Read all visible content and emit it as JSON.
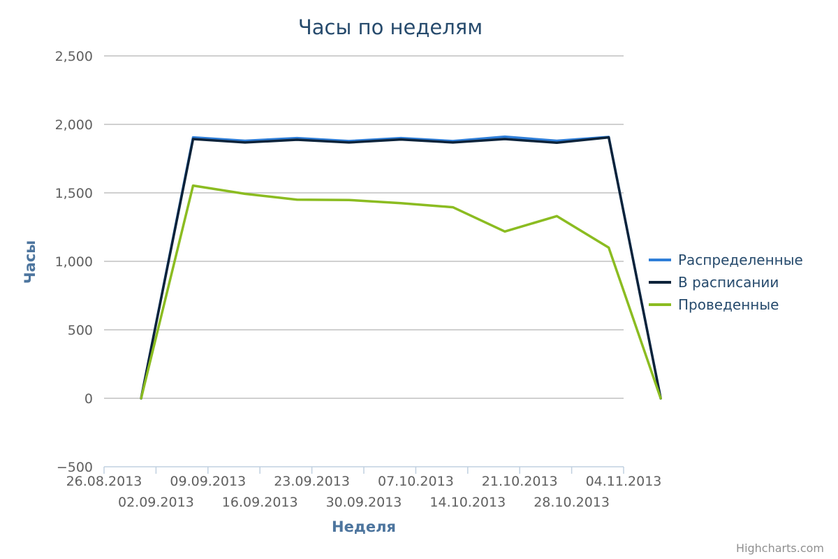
{
  "chart_data": {
    "type": "line",
    "title": "Часы по неделям",
    "xlabel": "Неделя",
    "ylabel": "Часы",
    "ylim": [
      -500,
      2500
    ],
    "yticks": [
      -500,
      0,
      500,
      1000,
      1500,
      2000,
      2500
    ],
    "ytick_labels": [
      "−500",
      "0",
      "500",
      "1,000",
      "1,500",
      "2,000",
      "2,500"
    ],
    "x_axis_start": "26.08.2013",
    "x_axis_end": "04.11.2013",
    "xtick_labels": [
      "26.08.2013",
      "02.09.2013",
      "09.09.2013",
      "16.09.2013",
      "23.09.2013",
      "30.09.2013",
      "07.10.2013",
      "14.10.2013",
      "21.10.2013",
      "28.10.2013",
      "04.11.2013"
    ],
    "x": [
      "31.08.2013",
      "07.09.2013",
      "14.09.2013",
      "21.09.2013",
      "28.09.2013",
      "05.10.2013",
      "12.10.2013",
      "19.10.2013",
      "26.10.2013",
      "02.11.2013",
      "09.11.2013"
    ],
    "series": [
      {
        "name": "Распределенные",
        "color": "#2f7ed8",
        "values": [
          0,
          1905,
          1880,
          1900,
          1878,
          1900,
          1878,
          1910,
          1880,
          1908,
          0
        ]
      },
      {
        "name": "В расписании",
        "color": "#0d233a",
        "values": [
          0,
          1893,
          1868,
          1888,
          1868,
          1890,
          1868,
          1893,
          1866,
          1905,
          0
        ]
      },
      {
        "name": "Проведенные",
        "color": "#8bbc21",
        "values": [
          0,
          1553,
          1493,
          1450,
          1448,
          1425,
          1395,
          1218,
          1330,
          1100,
          0
        ]
      }
    ],
    "grid": true,
    "legend_position": "right"
  },
  "credits": "Highcharts.com"
}
